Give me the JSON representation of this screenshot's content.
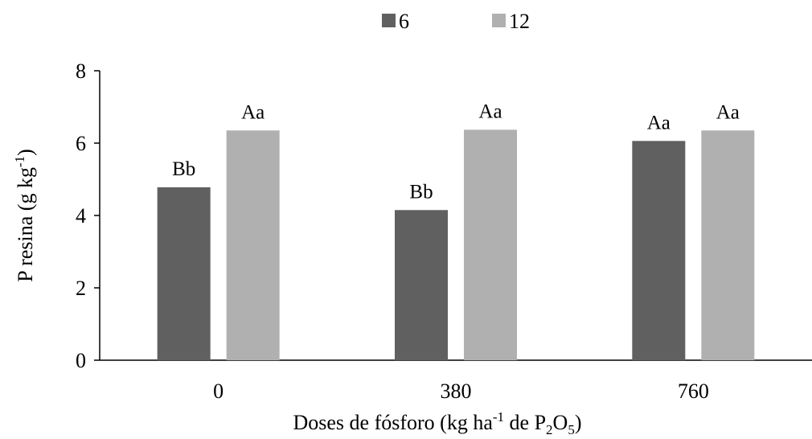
{
  "chart_data": {
    "type": "bar",
    "categories": [
      "0",
      "380",
      "760"
    ],
    "series": [
      {
        "name": "6",
        "color": "#606060",
        "values": [
          4.78,
          4.15,
          6.06
        ],
        "labels": [
          "Bb",
          "Bb",
          "Aa"
        ]
      },
      {
        "name": "12",
        "color": "#b0b0b0",
        "values": [
          6.35,
          6.37,
          6.35
        ],
        "labels": [
          "Aa",
          "Aa",
          "Aa"
        ]
      }
    ],
    "ylim": [
      0,
      8
    ],
    "yticks": [
      0,
      2,
      4,
      6,
      8
    ],
    "ylabel": {
      "main": "P resina (g kg",
      "sup": "-1",
      "close": ")"
    },
    "xlabel": {
      "pre": "Doses de fósforo (kg ha",
      "sup": "-1",
      "mid": " de P",
      "sub1": "2",
      "o": "O",
      "sub2": "5",
      "close": ")"
    },
    "legend_position": "top-center",
    "grid": false
  }
}
